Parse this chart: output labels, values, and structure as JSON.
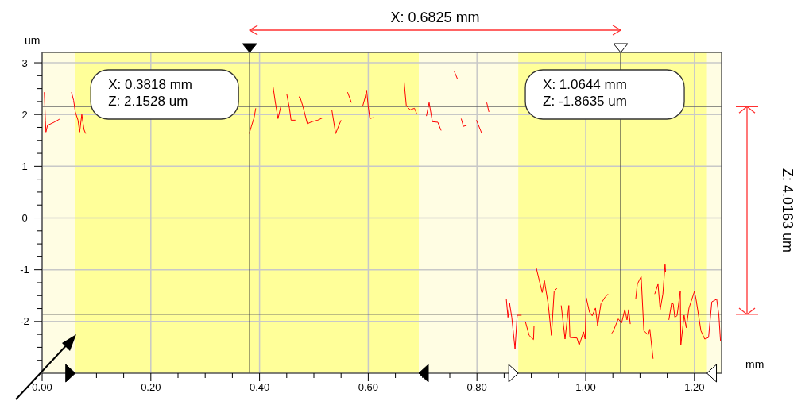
{
  "chart_data": {
    "type": "line",
    "xlabel": "mm",
    "ylabel": "um",
    "xlim": [
      0,
      1.25
    ],
    "ylim": [
      -3,
      3.2
    ],
    "xticks": [
      {
        "value": 0,
        "label": "0.00"
      },
      {
        "value": 0.05,
        "label": null
      },
      {
        "value": 0.1,
        "label": null
      },
      {
        "value": 0.15,
        "label": null
      },
      {
        "value": 0.2,
        "label": "0.20"
      },
      {
        "value": 0.25,
        "label": null
      },
      {
        "value": 0.3,
        "label": null
      },
      {
        "value": 0.35,
        "label": null
      },
      {
        "value": 0.4,
        "label": "0.40"
      },
      {
        "value": 0.45,
        "label": null
      },
      {
        "value": 0.5,
        "label": null
      },
      {
        "value": 0.55,
        "label": null
      },
      {
        "value": 0.6,
        "label": "0.60"
      },
      {
        "value": 0.65,
        "label": null
      },
      {
        "value": 0.7,
        "label": null
      },
      {
        "value": 0.75,
        "label": null
      },
      {
        "value": 0.8,
        "label": "0.80"
      },
      {
        "value": 0.85,
        "label": null
      },
      {
        "value": 0.9,
        "label": null
      },
      {
        "value": 0.95,
        "label": null
      },
      {
        "value": 1,
        "label": "1.00"
      },
      {
        "value": 1.05,
        "label": null
      },
      {
        "value": 1.1,
        "label": null
      },
      {
        "value": 1.15,
        "label": null
      },
      {
        "value": 1.2,
        "label": "1.20"
      }
    ],
    "yticks": [
      {
        "value": -2.75,
        "label": null
      },
      {
        "value": -2.5,
        "label": null
      },
      {
        "value": -2.25,
        "label": null
      },
      -2,
      {
        "value": -1.75,
        "label": null
      },
      {
        "value": -1.5,
        "label": null
      },
      {
        "value": -1.25,
        "label": null
      },
      -1,
      {
        "value": -0.75,
        "label": null
      },
      {
        "value": -0.5,
        "label": null
      },
      {
        "value": -0.25,
        "label": null
      },
      0,
      {
        "value": 0.25,
        "label": null
      },
      {
        "value": 0.5,
        "label": null
      },
      {
        "value": 0.75,
        "label": null
      },
      1,
      {
        "value": 1.25,
        "label": null
      },
      {
        "value": 1.5,
        "label": null
      },
      {
        "value": 1.75,
        "label": null
      },
      2,
      {
        "value": 2.25,
        "label": null
      },
      {
        "value": 2.5,
        "label": null
      },
      {
        "value": 2.75,
        "label": null
      },
      3
    ],
    "grid": true,
    "series": [
      {
        "color": "#ff0000",
        "x": [
          0.004,
          0.006,
          0.007,
          0.01,
          0.022,
          0.032,
          0.04,
          0.054,
          0.058,
          0.061,
          0.066,
          0.069,
          0.073,
          0.077,
          0.08,
          0.1,
          0.381,
          0.385,
          0.39,
          0.393,
          0.41,
          0.425,
          0.429,
          0.434,
          0.439,
          0.445,
          0.45,
          0.455,
          0.458,
          0.466,
          0.47,
          0.472,
          0.474,
          0.48,
          0.488,
          0.496,
          0.507,
          0.517,
          0.525,
          0.533,
          0.54,
          0.546,
          0.55,
          0.556,
          0.562,
          0.569,
          0.58,
          0.59,
          0.594,
          0.597,
          0.6,
          0.603,
          0.609,
          0.63,
          0.666,
          0.67,
          0.677,
          0.685,
          0.689,
          0.7,
          0.707,
          0.712,
          0.718,
          0.728,
          0.734,
          0.75,
          0.758,
          0.764,
          0.767,
          0.771,
          0.775,
          0.781,
          0.797,
          0.799,
          0.809,
          0.815,
          0.818,
          0.822,
          0.84,
          0.854,
          0.857,
          0.86,
          0.864,
          0.87,
          0.874,
          0.882,
          0.885,
          0.889,
          0.896,
          0.904,
          0.905,
          0.907,
          0.909,
          0.92,
          0.924,
          0.931,
          0.937,
          0.942,
          0.947,
          0.95,
          0.955,
          0.962,
          0.969,
          0.971,
          0.984,
          0.988,
          0.996,
          0.999,
          1.001,
          1.007,
          1.012,
          1.018,
          1.022,
          1.028,
          1.035,
          1.041,
          1.045,
          1.048,
          1.051,
          1.06,
          1.066,
          1.072,
          1.076,
          1.079,
          1.082,
          1.088,
          1.092,
          1.095,
          1.102,
          1.107,
          1.115,
          1.118,
          1.124,
          1.126,
          1.127,
          1.133,
          1.137,
          1.142,
          1.146,
          1.147,
          1.15,
          1.153,
          1.158,
          1.161,
          1.164,
          1.168,
          1.174,
          1.175,
          1.181,
          1.185,
          1.19,
          1.2,
          1.203,
          1.212,
          1.219,
          1.226,
          1.232,
          1.241,
          1.245,
          1.248
        ],
        "values": [
          2.43,
          1.89,
          1.66,
          1.79,
          1.85,
          1.91,
          null,
          2.43,
          2.27,
          2.05,
          1.89,
          1.66,
          2.0,
          1.71,
          1.63,
          null,
          1.63,
          1.77,
          1.94,
          2.12,
          null,
          2.53,
          2.24,
          1.92,
          2.15,
          null,
          2.4,
          2.12,
          1.89,
          1.89,
          null,
          2.31,
          2.35,
          2.15,
          1.82,
          1.86,
          1.89,
          1.94,
          null,
          2.09,
          1.63,
          1.79,
          1.89,
          null,
          2.43,
          2.23,
          null,
          2.17,
          2.32,
          2.47,
          2.15,
          1.92,
          1.94,
          null,
          2.63,
          2.17,
          2.09,
          2.12,
          2.02,
          null,
          1.97,
          2.23,
          1.86,
          1.85,
          1.69,
          null,
          2.84,
          2.69,
          null,
          1.92,
          1.77,
          1.79,
          null,
          1.89,
          1.63,
          null,
          2.23,
          2.05,
          null,
          -1.57,
          -1.92,
          -1.65,
          -1.92,
          -2.53,
          -1.88,
          -1.88,
          null,
          -2.0,
          -2.27,
          -2.35,
          -2.08,
          null,
          -0.96,
          -1.44,
          -1.21,
          -1.66,
          -2.27,
          -1.42,
          -1.36,
          null,
          -1.69,
          -2.34,
          -1.69,
          -2.31,
          -2.32,
          -2.46,
          -2.2,
          -2.34,
          -1.54,
          -1.82,
          -1.89,
          -1.74,
          -2.08,
          -1.66,
          -1.54,
          -1.47,
          null,
          -2.23,
          -2.18,
          -1.95,
          -2.03,
          -1.77,
          -1.97,
          -1.77,
          -2.05,
          null,
          -1.57,
          -1.28,
          -1.13,
          -2.18,
          -2.26,
          -2.15,
          -2.72,
          null,
          -1.47,
          -1.28,
          -1.77,
          -1.47,
          -0.9,
          -1.04,
          null,
          -1.97,
          -1.65,
          -1.66,
          -1.92,
          -1.89,
          -1.42,
          -2.46,
          -1.88,
          -2.12,
          -1.74,
          -1.42,
          -1.57,
          -2.18,
          -2.34,
          -2.31,
          -1.62,
          -1.57,
          -1.88,
          -2.38
        ]
      }
    ],
    "bands": [
      {
        "axis": "x",
        "from": 0.061,
        "to": 0.693,
        "color": "#ffff99"
      },
      {
        "axis": "x",
        "from": 0.876,
        "to": 1.223,
        "color": "#ffff99"
      }
    ],
    "ref_lines": [
      {
        "axis": "x",
        "value": 0.3818,
        "color": "#333333"
      },
      {
        "axis": "x",
        "value": 1.0644,
        "color": "#333333"
      },
      {
        "axis": "y",
        "value": 2.1528,
        "color": "#666666"
      },
      {
        "axis": "y",
        "value": -1.8635,
        "color": "#666666"
      }
    ],
    "annotations": [
      "X: 0.3818 mm\nZ: 2.1528 um",
      "X: 1.0644 mm\nZ: -1.8635 um",
      "X: 0.6825 mm",
      "Z: 4.0163 um"
    ]
  }
}
